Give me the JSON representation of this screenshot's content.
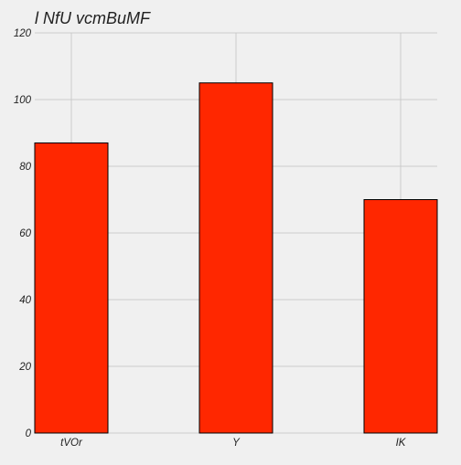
{
  "chart_data": {
    "type": "bar",
    "title": "l NfU vcmBuMF",
    "xlabel": "",
    "ylabel": "",
    "categories": [
      "tVOr",
      "Y",
      "IK"
    ],
    "values": [
      87,
      105,
      70
    ],
    "ylim": [
      0,
      120
    ],
    "yticks": [
      0,
      20,
      40,
      60,
      80,
      100,
      120
    ],
    "grid": true,
    "colors": {
      "bar": "#ff2700",
      "bar_edge": "#000000",
      "grid": "#cbcbcb",
      "background": "#f0f0f0"
    }
  }
}
